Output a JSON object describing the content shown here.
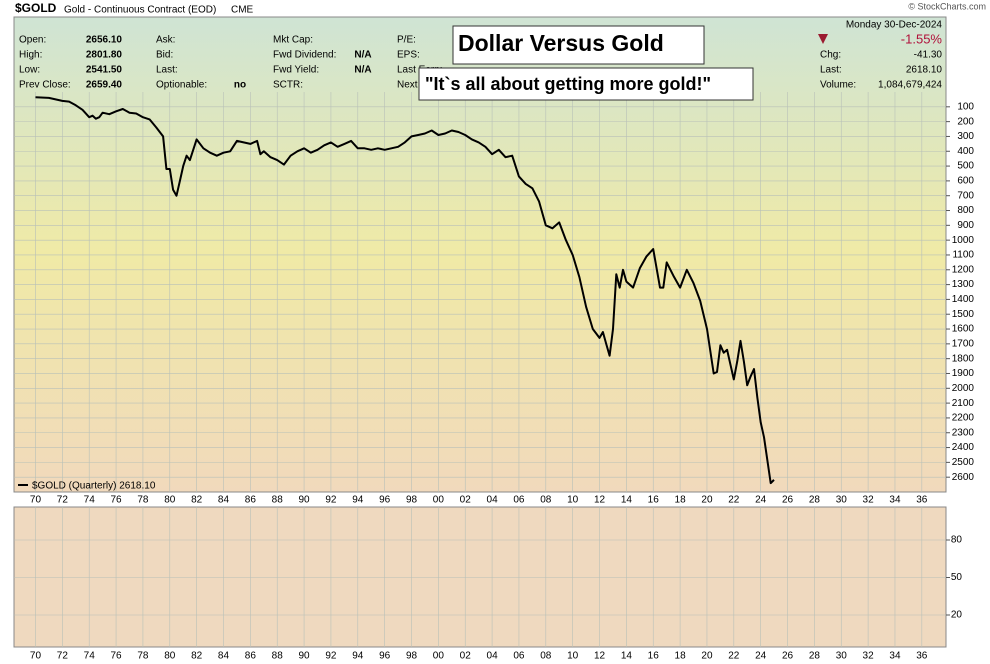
{
  "header": {
    "symbol": "$GOLD",
    "description": "Gold - Continuous Contract (EOD)",
    "exchange": "CME",
    "date": "Monday  30-Dec-2024",
    "watermark": "© StockCharts.com",
    "columns": [
      [
        {
          "label": "Open:",
          "value": "2656.10"
        },
        {
          "label": "High:",
          "value": "2801.80"
        },
        {
          "label": "Low:",
          "value": "2541.50"
        },
        {
          "label": "Prev Close:",
          "value": "2659.40"
        }
      ],
      [
        {
          "label": "Ask:"
        },
        {
          "label": "Bid:"
        },
        {
          "label": "Last:"
        },
        {
          "label": "Optionable:",
          "value": "no"
        }
      ],
      [
        {
          "label": "Mkt Cap:"
        },
        {
          "label": "Fwd Dividend:",
          "value": "N/A"
        },
        {
          "label": "Fwd Yield:",
          "value": "N/A"
        },
        {
          "label": "SCTR:"
        }
      ],
      [
        {
          "label": "P/E:"
        },
        {
          "label": "EPS:"
        },
        {
          "label": "Last Earn:"
        },
        {
          "label": "Next Earn:"
        }
      ]
    ],
    "change_pct": "-1.55%",
    "right": [
      {
        "label": "Chg:",
        "value": "-41.30"
      },
      {
        "label": "Last:",
        "value": "2618.10"
      },
      {
        "label": "Volume:",
        "value": "1,084,679,424"
      }
    ]
  },
  "chart_data": [
    {
      "type": "line",
      "title": "Dollar Versus Gold",
      "subtitle": "\"It`s all about getting more gold!\"",
      "invert_y": true,
      "grid": true,
      "xlim": [
        1968.4,
        2037.8
      ],
      "ylim": [
        0,
        2700
      ],
      "xticks": [
        {
          "value": 1970,
          "label": "70"
        },
        {
          "value": 1972,
          "label": "72"
        },
        {
          "value": 1974,
          "label": "74"
        },
        {
          "value": 1976,
          "label": "76"
        },
        {
          "value": 1978,
          "label": "78"
        },
        {
          "value": 1980,
          "label": "80"
        },
        {
          "value": 1982,
          "label": "82"
        },
        {
          "value": 1984,
          "label": "84"
        },
        {
          "value": 1986,
          "label": "86"
        },
        {
          "value": 1988,
          "label": "88"
        },
        {
          "value": 1990,
          "label": "90"
        },
        {
          "value": 1992,
          "label": "92"
        },
        {
          "value": 1994,
          "label": "94"
        },
        {
          "value": 1996,
          "label": "96"
        },
        {
          "value": 1998,
          "label": "98"
        },
        {
          "value": 2000,
          "label": "00"
        },
        {
          "value": 2002,
          "label": "02"
        },
        {
          "value": 2004,
          "label": "04"
        },
        {
          "value": 2006,
          "label": "06"
        },
        {
          "value": 2008,
          "label": "08"
        },
        {
          "value": 2010,
          "label": "10"
        },
        {
          "value": 2012,
          "label": "12"
        },
        {
          "value": 2014,
          "label": "14"
        },
        {
          "value": 2016,
          "label": "16"
        },
        {
          "value": 2018,
          "label": "18"
        },
        {
          "value": 2020,
          "label": "20"
        },
        {
          "value": 2022,
          "label": "22"
        },
        {
          "value": 2024,
          "label": "24"
        },
        {
          "value": 2026,
          "label": "26"
        },
        {
          "value": 2028,
          "label": "28"
        },
        {
          "value": 2030,
          "label": "30"
        },
        {
          "value": 2032,
          "label": "32"
        },
        {
          "value": 2034,
          "label": "34"
        },
        {
          "value": 2036,
          "label": "36"
        }
      ],
      "yticks": [
        100,
        200,
        300,
        400,
        500,
        600,
        700,
        800,
        900,
        1000,
        1100,
        1200,
        1300,
        1400,
        1500,
        1600,
        1700,
        1800,
        1900,
        2000,
        2100,
        2200,
        2300,
        2400,
        2500,
        2600
      ],
      "x": [
        1970,
        1971,
        1972,
        1972.5,
        1973,
        1973.5,
        1974,
        1974.25,
        1974.5,
        1974.75,
        1975,
        1975.5,
        1976,
        1976.5,
        1977,
        1977.5,
        1978,
        1978.5,
        1979,
        1979.5,
        1979.75,
        1980,
        1980.25,
        1980.5,
        1980.75,
        1981,
        1981.25,
        1981.5,
        1982,
        1982.5,
        1983,
        1983.5,
        1984,
        1984.5,
        1985,
        1985.5,
        1986,
        1986.5,
        1986.75,
        1987,
        1987.5,
        1988,
        1988.5,
        1989,
        1989.5,
        1990,
        1990.5,
        1991,
        1991.5,
        1992,
        1992.5,
        1993,
        1993.5,
        1994,
        1994.5,
        1995,
        1995.5,
        1996,
        1996.5,
        1997,
        1997.5,
        1998,
        1998.5,
        1999,
        1999.5,
        2000,
        2000.5,
        2001,
        2001.5,
        2002,
        2002.5,
        2003,
        2003.5,
        2004,
        2004.5,
        2005,
        2005.5,
        2006,
        2006.5,
        2007,
        2007.5,
        2008,
        2008.5,
        2009,
        2009.5,
        2010,
        2010.5,
        2011,
        2011.5,
        2012,
        2012.25,
        2012.5,
        2012.75,
        2013,
        2013.25,
        2013.5,
        2013.75,
        2014,
        2014.5,
        2015,
        2015.5,
        2016,
        2016.5,
        2016.75,
        2017,
        2017.5,
        2017.75,
        2018,
        2018.5,
        2019,
        2019.5,
        2020,
        2020.5,
        2020.75,
        2021,
        2021.25,
        2021.5,
        2022,
        2022.25,
        2022.5,
        2022.75,
        2023,
        2023.25,
        2023.5,
        2023.75,
        2024,
        2024.25,
        2024.75,
        2024.99
      ],
      "series": [
        {
          "name": "$GOLD (Quarterly) 2618.10",
          "color": "#000000",
          "values": [
            36,
            40,
            60,
            65,
            90,
            120,
            170,
            160,
            180,
            170,
            140,
            150,
            130,
            115,
            140,
            145,
            170,
            185,
            240,
            300,
            520,
            520,
            660,
            700,
            600,
            500,
            430,
            460,
            320,
            380,
            410,
            430,
            410,
            400,
            330,
            340,
            350,
            330,
            420,
            400,
            440,
            460,
            490,
            430,
            400,
            380,
            410,
            390,
            360,
            340,
            370,
            350,
            330,
            380,
            380,
            390,
            380,
            390,
            380,
            370,
            340,
            300,
            290,
            280,
            260,
            290,
            280,
            260,
            270,
            290,
            320,
            340,
            370,
            420,
            390,
            440,
            430,
            570,
            620,
            650,
            740,
            900,
            920,
            880,
            1000,
            1100,
            1250,
            1450,
            1600,
            1660,
            1620,
            1700,
            1780,
            1600,
            1230,
            1320,
            1200,
            1280,
            1320,
            1190,
            1110,
            1060,
            1320,
            1320,
            1150,
            1240,
            1280,
            1320,
            1200,
            1290,
            1410,
            1600,
            1900,
            1890,
            1710,
            1760,
            1740,
            1940,
            1820,
            1680,
            1820,
            1980,
            1920,
            1870,
            2060,
            2230,
            2330,
            2640,
            2618.1
          ]
        }
      ]
    },
    {
      "type": "line",
      "xlim": [
        1968.4,
        2037.8
      ],
      "ylim": [
        -5.6,
        106.4
      ],
      "yticks": [
        80,
        50,
        20
      ],
      "grid": true,
      "xticks": [
        {
          "value": 1970,
          "label": "70"
        },
        {
          "value": 1972,
          "label": "72"
        },
        {
          "value": 1974,
          "label": "74"
        },
        {
          "value": 1976,
          "label": "76"
        },
        {
          "value": 1978,
          "label": "78"
        },
        {
          "value": 1980,
          "label": "80"
        },
        {
          "value": 1982,
          "label": "82"
        },
        {
          "value": 1984,
          "label": "84"
        },
        {
          "value": 1986,
          "label": "86"
        },
        {
          "value": 1988,
          "label": "88"
        },
        {
          "value": 1990,
          "label": "90"
        },
        {
          "value": 1992,
          "label": "92"
        },
        {
          "value": 1994,
          "label": "94"
        },
        {
          "value": 1996,
          "label": "96"
        },
        {
          "value": 1998,
          "label": "98"
        },
        {
          "value": 2000,
          "label": "00"
        },
        {
          "value": 2002,
          "label": "02"
        },
        {
          "value": 2004,
          "label": "04"
        },
        {
          "value": 2006,
          "label": "06"
        },
        {
          "value": 2008,
          "label": "08"
        },
        {
          "value": 2010,
          "label": "10"
        },
        {
          "value": 2012,
          "label": "12"
        },
        {
          "value": 2014,
          "label": "14"
        },
        {
          "value": 2016,
          "label": "16"
        },
        {
          "value": 2018,
          "label": "18"
        },
        {
          "value": 2020,
          "label": "20"
        },
        {
          "value": 2022,
          "label": "22"
        },
        {
          "value": 2024,
          "label": "24"
        },
        {
          "value": 2026,
          "label": "26"
        },
        {
          "value": 2028,
          "label": "28"
        },
        {
          "value": 2030,
          "label": "30"
        },
        {
          "value": 2032,
          "label": "32"
        },
        {
          "value": 2034,
          "label": "34"
        },
        {
          "value": 2036,
          "label": "36"
        }
      ],
      "series": []
    }
  ]
}
